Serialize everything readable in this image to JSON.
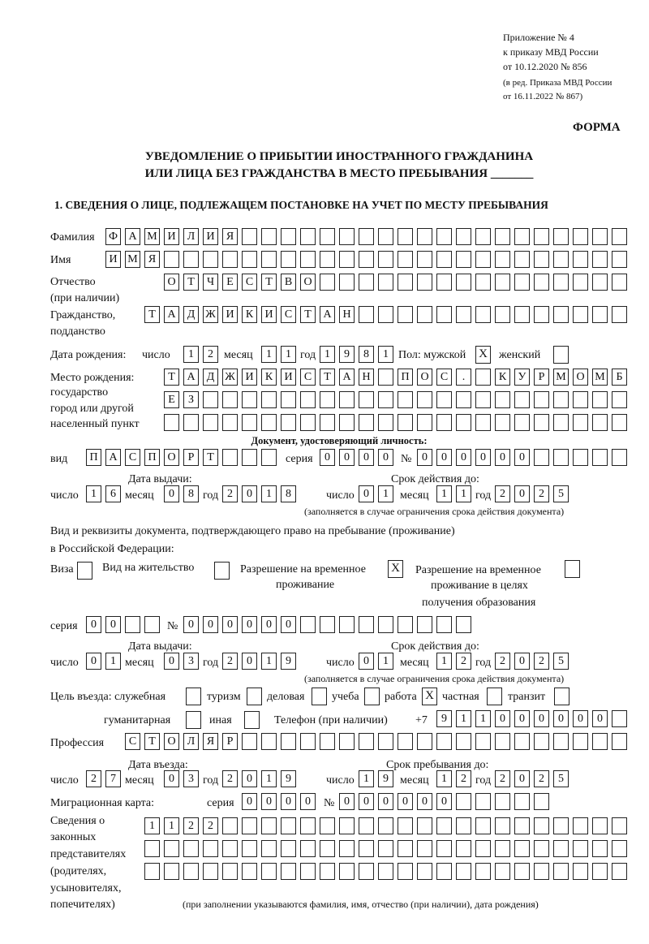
{
  "header": {
    "appendix": "Приложение № 4",
    "order_line": "к приказу МВД России",
    "order_date": "от 10.12.2020 № 856",
    "edition_line1": "(в ред. Приказа МВД России",
    "edition_line2": "от 16.11.2022 № 867)",
    "form_label": "ФОРМА",
    "title_line1": "УВЕДОМЛЕНИЕ О ПРИБЫТИИ ИНОСТРАННОГО ГРАЖДАНИНА",
    "title_line2": "ИЛИ ЛИЦА БЕЗ ГРАЖДАНСТВА В МЕСТО ПРЕБЫВАНИЯ _______",
    "section1": "1. СВЕДЕНИЯ О ЛИЦЕ, ПОДЛЕЖАЩЕМ ПОСТАНОВКЕ НА УЧЕТ ПО МЕСТУ ПРЕБЫВАНИЯ"
  },
  "labels": {
    "surname": "Фамилия",
    "name": "Имя",
    "patronymic": "Отчество",
    "patronymic_note": "(при наличии)",
    "citizenship1": "Гражданство,",
    "citizenship2": "подданство",
    "birth_date": "Дата рождения:",
    "day": "число",
    "month": "месяц",
    "year": "год",
    "sex": "Пол: мужской",
    "female": "женский",
    "birthplace1": "Место рождения:",
    "birthplace2": "государство",
    "birthplace3": "город или другой",
    "birthplace4": "населенный пункт",
    "id_doc": "Документ, удостоверяющий личность:",
    "kind": "вид",
    "series": "серия",
    "number": "№",
    "issue_date": "Дата выдачи:",
    "valid_until": "Срок действия до:",
    "validity_note": "(заполняется в случае ограничения срока действия документа)",
    "right_doc1": "Вид и реквизиты документа, подтверждающего право на пребывание (проживание)",
    "right_doc2": "в Российской Федерации:",
    "visa": "Виза",
    "residence_permit": "Вид на жительство",
    "temp_permit1": "Разрешение на временное",
    "temp_permit2": "проживание",
    "temp_edu1": "Разрешение на временное",
    "temp_edu2": "проживание в целях",
    "temp_edu3": "получения образования",
    "purpose": "Цель въезда: служебная",
    "tourism": "туризм",
    "business": "деловая",
    "study": "учеба",
    "work": "работа",
    "private": "частная",
    "transit": "транзит",
    "humanitarian": "гуманитарная",
    "other": "иная",
    "phone": "Телефон (при наличии)",
    "phone_prefix": "+7",
    "profession": "Профессия",
    "entry_date": "Дата въезда:",
    "stay_until": "Срок пребывания до:",
    "migration_card": "Миграционная карта:",
    "reps1": "Сведения о",
    "reps2": "законных",
    "reps3": "представителях",
    "reps4": "(родителях,",
    "reps5": "усыновителях,",
    "reps6": "попечителях)",
    "reps_note": "(при заполнении указываются фамилия, имя, отчество (при наличии), дата рождения)"
  },
  "fields": {
    "surname": "ФАМИЛИЯ",
    "name": "ИМЯ",
    "patronymic": "ОТЧЕСТВО",
    "citizenship": "ТАДЖИКИСТАН",
    "birth_day": "12",
    "birth_month": "11",
    "birth_year": "1981",
    "birthplace1": "ТАДЖИКИСТАН ПОС. КУРМОМБ",
    "birthplace2": "ЕЗ",
    "birthplace3": "",
    "id_kind": "ПАСПОРТ",
    "id_series": "0000",
    "id_number": "000000",
    "id_issue_day": "16",
    "id_issue_month": "08",
    "id_issue_year": "2018",
    "id_valid_day": "01",
    "id_valid_month": "11",
    "id_valid_year": "2025",
    "right_series": "00",
    "right_number": "000000",
    "right_issue_day": "01",
    "right_issue_month": "03",
    "right_issue_year": "2019",
    "right_valid_day": "01",
    "right_valid_month": "12",
    "right_valid_year": "2025",
    "phone": "911000000",
    "profession": "СТОЛЯР",
    "entry_day": "27",
    "entry_month": "03",
    "entry_year": "2019",
    "stay_day": "19",
    "stay_month": "12",
    "stay_year": "2025",
    "mig_series": "0000",
    "mig_number": "000000",
    "reps1": "1122",
    "reps2": "",
    "reps3": ""
  },
  "checks": {
    "male": true,
    "female": false,
    "visa": false,
    "residence_permit": false,
    "temp_permit": true,
    "temp_edu": false,
    "official": false,
    "tourism": false,
    "business": false,
    "study": false,
    "work": true,
    "private": false,
    "transit": false,
    "humanitarian": false,
    "other": false
  },
  "check_mark": "X"
}
